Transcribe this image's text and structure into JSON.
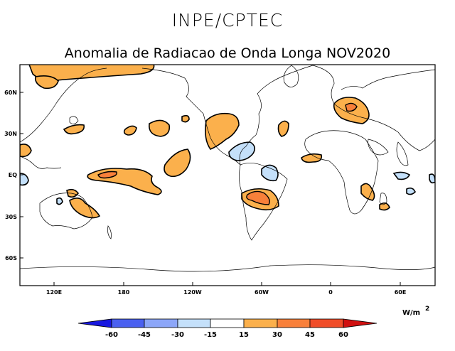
{
  "header": {
    "title": "INPE/CPTEC",
    "subtitle": "Anomalia de Radiacao de Onda Longa NOV2020"
  },
  "map": {
    "lat_labels": [
      "60N",
      "30N",
      "EQ",
      "30S",
      "60S"
    ],
    "lon_labels": [
      "120E",
      "180",
      "120W",
      "60W",
      "0",
      "60E"
    ]
  },
  "colorbar": {
    "unit": "W/m",
    "unit_exp": "2",
    "ticks": [
      "-60",
      "-45",
      "-30",
      "-15",
      "15",
      "30",
      "45",
      "60"
    ],
    "colors": {
      "neg60": "#1818e0",
      "neg45": "#4a60f0",
      "neg30": "#8ca6f8",
      "neg15": "#c4e0fa",
      "zero": "#ffffff",
      "pos15": "#fbb04c",
      "pos30": "#f8803a",
      "pos45": "#f04c28",
      "pos60": "#d01010"
    }
  }
}
